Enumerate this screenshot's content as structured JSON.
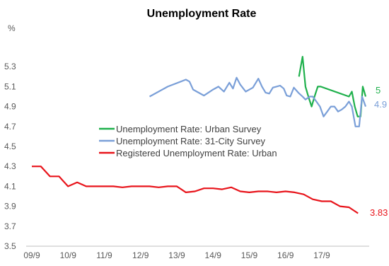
{
  "chart_data": {
    "type": "line",
    "title": "Unemployment Rate",
    "ylabel": "%",
    "xlabel": "",
    "ylim": [
      3.5,
      5.5
    ],
    "yticks": [
      "3.5",
      "3.7",
      "3.9",
      "4.1",
      "4.3",
      "4.5",
      "4.7",
      "4.9",
      "5.1",
      "5.3"
    ],
    "xlim": [
      2009.75,
      2018.98
    ],
    "xticks": [
      {
        "label": "09/9",
        "x": 2009.75
      },
      {
        "label": "10/9",
        "x": 2010.75
      },
      {
        "label": "11/9",
        "x": 2011.75
      },
      {
        "label": "12/9",
        "x": 2012.75
      },
      {
        "label": "13/9",
        "x": 2013.75
      },
      {
        "label": "14/9",
        "x": 2014.75
      },
      {
        "label": "15/9",
        "x": 2015.75
      },
      {
        "label": "16/9",
        "x": 2016.75
      },
      {
        "label": "17/9",
        "x": 2017.75
      }
    ],
    "legend_position": "center",
    "series": [
      {
        "name": "Unemployment Rate: Urban Survey",
        "color": "#1fb04c",
        "end_label": "5",
        "points": [
          [
            2017.12,
            5.2
          ],
          [
            2017.22,
            5.4
          ],
          [
            2017.3,
            5.1
          ],
          [
            2017.38,
            5.0
          ],
          [
            2017.47,
            4.9
          ],
          [
            2017.55,
            5.0
          ],
          [
            2017.64,
            5.1
          ],
          [
            2017.72,
            5.1
          ],
          [
            2018.5,
            5.0
          ],
          [
            2018.58,
            5.05
          ],
          [
            2018.66,
            4.9
          ],
          [
            2018.74,
            4.8
          ],
          [
            2018.82,
            4.8
          ],
          [
            2018.88,
            5.1
          ],
          [
            2018.96,
            5.0
          ]
        ]
      },
      {
        "name": "Unemployment Rate: 31-City Survey",
        "color": "#7a9fd8",
        "end_label": "4.9",
        "points": [
          [
            2013.0,
            5.0
          ],
          [
            2013.5,
            5.1
          ],
          [
            2014.0,
            5.17
          ],
          [
            2014.1,
            5.15
          ],
          [
            2014.2,
            5.07
          ],
          [
            2014.5,
            5.01
          ],
          [
            2014.75,
            5.07
          ],
          [
            2014.9,
            5.1
          ],
          [
            2015.05,
            5.05
          ],
          [
            2015.2,
            5.14
          ],
          [
            2015.3,
            5.08
          ],
          [
            2015.4,
            5.19
          ],
          [
            2015.5,
            5.12
          ],
          [
            2015.65,
            5.05
          ],
          [
            2015.85,
            5.09
          ],
          [
            2016.0,
            5.18
          ],
          [
            2016.1,
            5.1
          ],
          [
            2016.2,
            5.04
          ],
          [
            2016.3,
            5.03
          ],
          [
            2016.4,
            5.09
          ],
          [
            2016.5,
            5.1
          ],
          [
            2016.6,
            5.11
          ],
          [
            2016.7,
            5.08
          ],
          [
            2016.78,
            5.01
          ],
          [
            2016.88,
            5.0
          ],
          [
            2016.98,
            5.09
          ],
          [
            2017.1,
            5.04
          ],
          [
            2017.22,
            5.0
          ],
          [
            2017.3,
            4.97
          ],
          [
            2017.42,
            5.0
          ],
          [
            2017.5,
            5.0
          ],
          [
            2017.6,
            4.95
          ],
          [
            2017.7,
            4.9
          ],
          [
            2017.8,
            4.8
          ],
          [
            2017.9,
            4.85
          ],
          [
            2018.0,
            4.9
          ],
          [
            2018.1,
            4.9
          ],
          [
            2018.2,
            4.85
          ],
          [
            2018.3,
            4.87
          ],
          [
            2018.4,
            4.9
          ],
          [
            2018.5,
            4.95
          ],
          [
            2018.58,
            4.9
          ],
          [
            2018.68,
            4.7
          ],
          [
            2018.78,
            4.7
          ],
          [
            2018.86,
            5.0
          ],
          [
            2018.96,
            4.9
          ]
        ]
      },
      {
        "name": "Registered Unemployment Rate: Urban",
        "color": "#e8141b",
        "end_label": "3.83",
        "points": [
          [
            2009.75,
            4.3
          ],
          [
            2010.0,
            4.3
          ],
          [
            2010.25,
            4.2
          ],
          [
            2010.5,
            4.2
          ],
          [
            2010.75,
            4.1
          ],
          [
            2011.0,
            4.14
          ],
          [
            2011.25,
            4.1
          ],
          [
            2011.75,
            4.1
          ],
          [
            2012.0,
            4.1
          ],
          [
            2012.25,
            4.09
          ],
          [
            2012.5,
            4.1
          ],
          [
            2012.75,
            4.1
          ],
          [
            2013.0,
            4.1
          ],
          [
            2013.25,
            4.09
          ],
          [
            2013.5,
            4.1
          ],
          [
            2013.75,
            4.1
          ],
          [
            2014.0,
            4.04
          ],
          [
            2014.25,
            4.05
          ],
          [
            2014.5,
            4.08
          ],
          [
            2014.75,
            4.08
          ],
          [
            2015.0,
            4.07
          ],
          [
            2015.25,
            4.09
          ],
          [
            2015.5,
            4.05
          ],
          [
            2015.75,
            4.04
          ],
          [
            2016.0,
            4.05
          ],
          [
            2016.25,
            4.05
          ],
          [
            2016.5,
            4.04
          ],
          [
            2016.75,
            4.05
          ],
          [
            2017.0,
            4.04
          ],
          [
            2017.25,
            4.02
          ],
          [
            2017.5,
            3.97
          ],
          [
            2017.75,
            3.95
          ],
          [
            2018.0,
            3.95
          ],
          [
            2018.25,
            3.9
          ],
          [
            2018.5,
            3.89
          ],
          [
            2018.75,
            3.83
          ]
        ]
      }
    ]
  }
}
